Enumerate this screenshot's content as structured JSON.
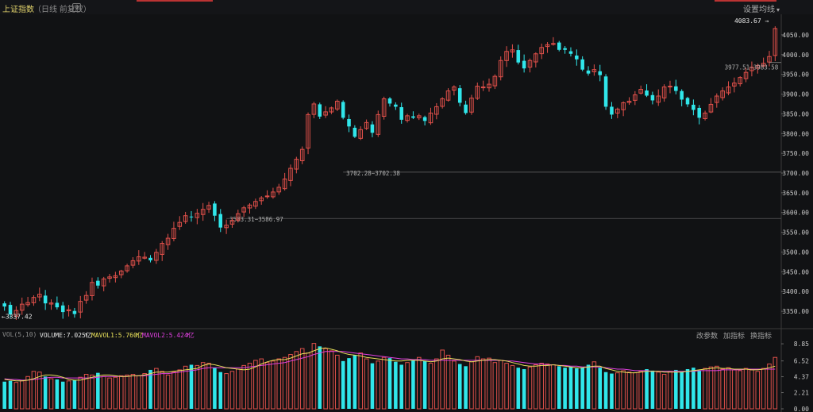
{
  "header": {
    "title": "上证指数",
    "subtitle": "（日线 前复权）",
    "settings_label": "设置均线"
  },
  "volume_header": {
    "indicator": "VOL(5,10)",
    "volume_label": "VOLUME:7.025亿",
    "ma1_label": "MAVOL1:5.760亿",
    "ma2_label": "MAVOL2:5.424亿",
    "buttons": [
      "改参数",
      "加指标",
      "换指标"
    ]
  },
  "colors": {
    "up": "#e0504a",
    "down": "#30e6ea",
    "mavol1": "#e8e05a",
    "mavol2": "#e040e0",
    "axis_text": "#c9c9c9",
    "grid": "#2c2c2c",
    "bg": "#111214"
  },
  "chart_data": {
    "type": "candlestick",
    "price_axis": {
      "ylim": [
        3310,
        4090
      ],
      "ticks": [
        "4050.00",
        "4000.00",
        "3950.00",
        "3900.00",
        "3850.00",
        "3800.00",
        "3750.00",
        "3700.00",
        "3650.00",
        "3600.00",
        "3550.00",
        "3500.00",
        "3450.00",
        "3400.00",
        "3350.00"
      ]
    },
    "volume_axis": {
      "ylim": [
        0,
        9.4
      ],
      "ticks": [
        "8.85",
        "6.52",
        "4.37",
        "2.21",
        "0.00"
      ],
      "unit": "亿"
    },
    "annotations": {
      "high": "4083.67",
      "low": "3337.42",
      "gap1": "3702.28~3702.38",
      "gap2": "3583.31~3586.97",
      "last_gap": "3977.51~3983.58"
    },
    "closes": [
      3362,
      3342,
      3352,
      3368,
      3372,
      3385,
      3393,
      3370,
      3371,
      3360,
      3348,
      3354,
      3343,
      3375,
      3390,
      3423,
      3415,
      3432,
      3437,
      3440,
      3452,
      3465,
      3478,
      3488,
      3487,
      3479,
      3499,
      3522,
      3535,
      3560,
      3575,
      3592,
      3588,
      3598,
      3608,
      3618,
      3592,
      3562,
      3568,
      3580,
      3597,
      3612,
      3619,
      3628,
      3637,
      3642,
      3652,
      3664,
      3685,
      3712,
      3735,
      3760,
      3848,
      3875,
      3843,
      3855,
      3865,
      3882,
      3840,
      3818,
      3792,
      3810,
      3828,
      3802,
      3848,
      3888,
      3876,
      3868,
      3835,
      3845,
      3840,
      3845,
      3832,
      3852,
      3868,
      3888,
      3908,
      3918,
      3878,
      3852,
      3890,
      3920,
      3918,
      3925,
      3945,
      3985,
      4008,
      4012,
      3980,
      3965,
      3985,
      4002,
      4018,
      4025,
      4028,
      4012,
      4012,
      4002,
      3988,
      3962,
      3952,
      3962,
      3948,
      3868,
      3848,
      3862,
      3878,
      3882,
      3898,
      3912,
      3896,
      3884,
      3895,
      3918,
      3920,
      3908,
      3886,
      3874,
      3860,
      3840,
      3852,
      3874,
      3895,
      3908,
      3918,
      3928,
      3942,
      3955,
      3968,
      3972,
      3978,
      3995,
      4066
    ],
    "volumes": [
      3.7,
      3.8,
      3.6,
      3.8,
      4.4,
      5.1,
      5.0,
      4.4,
      4.1,
      4.0,
      3.7,
      3.8,
      3.9,
      4.3,
      4.7,
      4.6,
      4.9,
      4.4,
      4.2,
      4.3,
      4.5,
      4.6,
      4.7,
      4.5,
      4.8,
      5.3,
      5.5,
      5.1,
      4.6,
      5.0,
      5.3,
      5.8,
      6.0,
      5.9,
      6.3,
      6.2,
      5.6,
      5.0,
      4.8,
      5.1,
      5.4,
      5.9,
      6.2,
      6.6,
      6.8,
      6.3,
      6.5,
      6.8,
      7.0,
      7.4,
      7.8,
      8.2,
      7.6,
      8.9,
      8.5,
      8.2,
      7.9,
      7.3,
      6.5,
      6.9,
      7.3,
      7.6,
      6.8,
      6.2,
      6.5,
      7.0,
      6.9,
      6.4,
      6.0,
      6.3,
      6.6,
      7.0,
      6.5,
      6.2,
      6.8,
      8.0,
      7.3,
      6.5,
      6.1,
      5.8,
      6.4,
      7.1,
      6.8,
      6.9,
      6.3,
      6.6,
      6.2,
      5.9,
      5.6,
      5.4,
      5.7,
      6.0,
      6.2,
      6.1,
      6.0,
      5.8,
      5.6,
      5.7,
      5.5,
      5.6,
      6.0,
      6.4,
      5.6,
      5.0,
      4.8,
      4.9,
      5.2,
      5.0,
      4.9,
      5.1,
      5.4,
      5.2,
      5.0,
      4.7,
      5.1,
      5.3,
      5.0,
      5.4,
      5.6,
      5.2,
      5.5,
      5.7,
      5.8,
      5.4,
      5.6,
      5.3,
      5.2,
      5.5,
      5.3,
      5.1,
      5.5,
      6.1,
      7.0
    ],
    "mavol1": [
      4.0,
      3.9,
      3.8,
      3.8,
      3.9,
      4.1,
      4.4,
      4.6,
      4.6,
      4.5,
      4.3,
      4.0,
      3.9,
      3.9,
      4.1,
      4.3,
      4.5,
      4.6,
      4.6,
      4.5,
      4.4,
      4.4,
      4.5,
      4.5,
      4.6,
      4.8,
      5.0,
      5.0,
      5.0,
      5.1,
      5.2,
      5.3,
      5.4,
      5.5,
      5.9,
      6.1,
      6.0,
      5.8,
      5.6,
      5.5,
      5.4,
      5.3,
      5.4,
      5.7,
      6.1,
      6.4,
      6.6,
      6.7,
      6.7,
      6.9,
      7.2,
      7.5,
      7.6,
      7.9,
      8.2,
      8.3,
      8.1,
      7.9,
      7.6,
      7.4,
      7.3,
      7.2,
      7.0,
      6.9,
      6.8,
      6.7,
      6.6,
      6.5,
      6.5,
      6.6,
      6.6,
      6.6,
      6.5,
      6.4,
      6.5,
      6.8,
      6.9,
      6.8,
      6.7,
      6.5,
      6.4,
      6.5,
      6.6,
      6.7,
      6.7,
      6.6,
      6.5,
      6.3,
      6.1,
      5.9,
      5.8,
      5.8,
      5.9,
      5.9,
      6.0,
      5.9,
      5.8,
      5.7,
      5.6,
      5.6,
      5.7,
      5.8,
      5.8,
      5.5,
      5.3,
      5.1,
      5.0,
      4.9,
      4.9,
      5.0,
      5.1,
      5.1,
      5.1,
      5.0,
      5.0,
      5.0,
      5.0,
      5.1,
      5.2,
      5.3,
      5.4,
      5.5,
      5.6,
      5.5,
      5.5,
      5.4,
      5.4,
      5.4,
      5.3,
      5.3,
      5.4,
      5.6,
      5.8
    ],
    "mavol2": [
      4.1,
      4.0,
      4.0,
      3.9,
      3.9,
      4.0,
      4.1,
      4.2,
      4.3,
      4.3,
      4.2,
      4.2,
      4.2,
      4.2,
      4.2,
      4.2,
      4.3,
      4.4,
      4.4,
      4.4,
      4.4,
      4.4,
      4.5,
      4.5,
      4.5,
      4.6,
      4.7,
      4.8,
      4.8,
      4.9,
      5.0,
      5.1,
      5.2,
      5.3,
      5.5,
      5.6,
      5.6,
      5.6,
      5.6,
      5.6,
      5.6,
      5.6,
      5.7,
      5.8,
      5.9,
      6.0,
      6.1,
      6.2,
      6.3,
      6.5,
      6.7,
      6.9,
      7.1,
      7.4,
      7.6,
      7.8,
      7.8,
      7.8,
      7.8,
      7.7,
      7.6,
      7.5,
      7.4,
      7.3,
      7.2,
      7.1,
      7.0,
      6.9,
      6.8,
      6.8,
      6.7,
      6.7,
      6.7,
      6.6,
      6.6,
      6.6,
      6.6,
      6.6,
      6.6,
      6.6,
      6.6,
      6.6,
      6.6,
      6.6,
      6.6,
      6.6,
      6.5,
      6.5,
      6.4,
      6.3,
      6.2,
      6.1,
      6.1,
      6.0,
      6.0,
      5.9,
      5.9,
      5.8,
      5.8,
      5.7,
      5.7,
      5.7,
      5.7,
      5.6,
      5.5,
      5.4,
      5.4,
      5.3,
      5.2,
      5.2,
      5.2,
      5.1,
      5.1,
      5.1,
      5.1,
      5.1,
      5.1,
      5.1,
      5.1,
      5.2,
      5.2,
      5.2,
      5.2,
      5.3,
      5.3,
      5.3,
      5.3,
      5.4,
      5.4,
      5.4,
      5.4,
      5.4,
      5.4
    ]
  }
}
